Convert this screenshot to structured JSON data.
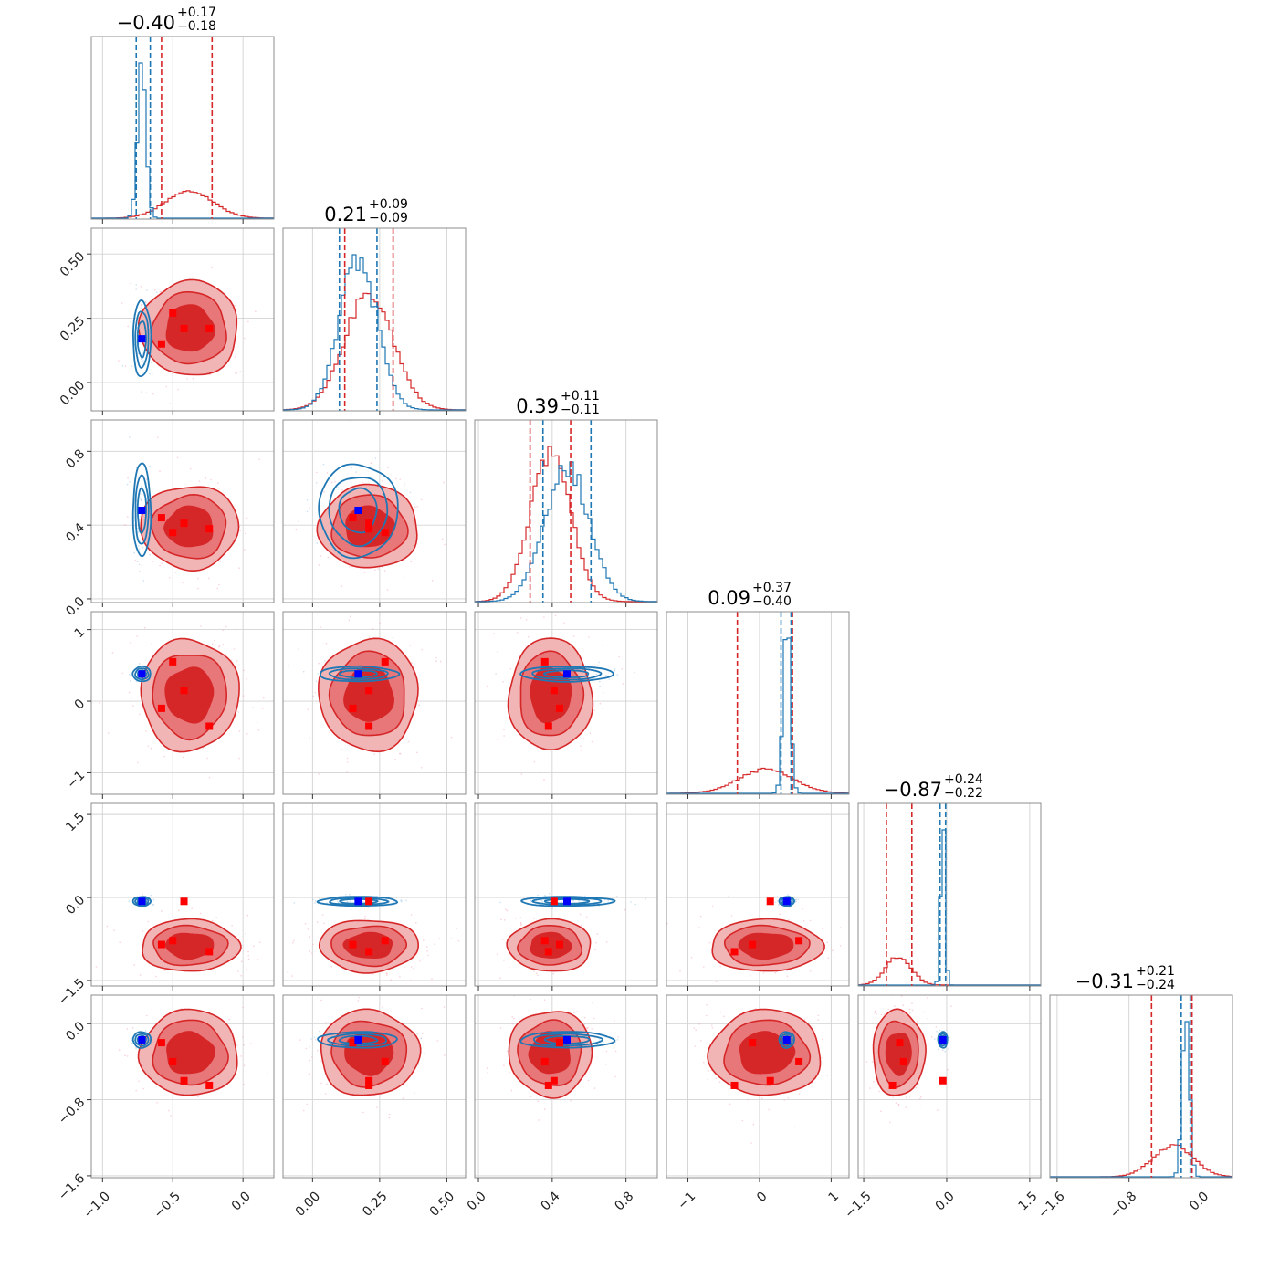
{
  "chart_data": {
    "type": "corner",
    "colors": {
      "red": "#d62728",
      "blue": "#1f77b4",
      "red_marker": "#ff0000",
      "blue_marker": "#0000ff"
    },
    "grid": true,
    "parameters": [
      {
        "median": -0.4,
        "plus": 0.17,
        "minus": 0.18,
        "title_main": "−0.40",
        "title_plus": "+0.17",
        "title_minus": "−0.18",
        "range": [
          -1.08,
          0.22
        ],
        "ticks": [
          -1.0,
          -0.5,
          0.0
        ],
        "tick_labels": [
          "−1.0",
          "−0.5",
          "0.0"
        ],
        "row_ylim": null,
        "red": {
          "mean": -0.38,
          "sd": 0.17
        },
        "blue": {
          "mean": -0.72,
          "sd": 0.03
        },
        "red_quantiles": [
          -0.58,
          -0.22
        ],
        "blue_quantiles": [
          -0.76,
          -0.66
        ],
        "red_markers": [
          -0.58,
          -0.5,
          -0.42,
          -0.24
        ],
        "blue_marker": -0.72
      },
      {
        "median": 0.21,
        "plus": 0.09,
        "minus": 0.09,
        "title_main": "0.21",
        "title_plus": "+0.09",
        "title_minus": "−0.09",
        "range": [
          -0.11,
          0.57
        ],
        "ticks": [
          0.0,
          0.25,
          0.5
        ],
        "tick_labels": [
          "0.00",
          "0.25",
          "0.50"
        ],
        "row_ylim": [
          -0.11,
          0.6
        ],
        "red": {
          "mean": 0.21,
          "sd": 0.09
        },
        "blue": {
          "mean": 0.17,
          "sd": 0.07
        },
        "red_quantiles": [
          0.12,
          0.3
        ],
        "blue_quantiles": [
          0.1,
          0.24
        ],
        "red_markers": [
          0.15,
          0.27,
          0.21,
          0.21
        ],
        "blue_marker": 0.17
      },
      {
        "median": 0.39,
        "plus": 0.11,
        "minus": 0.11,
        "title_main": "0.39",
        "title_plus": "+0.11",
        "title_minus": "−0.11",
        "range": [
          -0.02,
          0.97
        ],
        "ticks": [
          0.0,
          0.4,
          0.8
        ],
        "tick_labels": [
          "0.0",
          "0.4",
          "0.8"
        ],
        "row_ylim": [
          -0.02,
          0.97
        ],
        "red": {
          "mean": 0.39,
          "sd": 0.11
        },
        "blue": {
          "mean": 0.48,
          "sd": 0.12
        },
        "red_quantiles": [
          0.28,
          0.5
        ],
        "blue_quantiles": [
          0.35,
          0.61
        ],
        "red_markers": [
          0.44,
          0.36,
          0.41,
          0.38
        ],
        "blue_marker": 0.48
      },
      {
        "median": 0.09,
        "plus": 0.37,
        "minus": 0.4,
        "title_main": "0.09",
        "title_plus": "+0.37",
        "title_minus": "−0.40",
        "range": [
          -1.3,
          1.25
        ],
        "ticks": [
          -1,
          0,
          1
        ],
        "tick_labels": [
          "−1",
          "0",
          "1"
        ],
        "row_ylim": [
          -1.3,
          1.25
        ],
        "red": {
          "mean": 0.09,
          "sd": 0.38
        },
        "blue": {
          "mean": 0.38,
          "sd": 0.05
        },
        "red_quantiles": [
          -0.31,
          0.46
        ],
        "blue_quantiles": [
          0.3,
          0.44
        ],
        "red_markers": [
          -0.1,
          0.55,
          0.15,
          -0.35
        ],
        "blue_marker": 0.38
      },
      {
        "median": -0.87,
        "plus": 0.24,
        "minus": 0.22,
        "title_main": "−0.87",
        "title_plus": "+0.24",
        "title_minus": "−0.22",
        "range": [
          -1.6,
          1.7
        ],
        "ticks": [
          -1.5,
          0.0,
          1.5
        ],
        "tick_labels": [
          "−1.5",
          "0.0",
          "1.5"
        ],
        "row_ylim": [
          -1.6,
          1.7
        ],
        "red": {
          "mean": -0.87,
          "sd": 0.23
        },
        "blue": {
          "mean": -0.07,
          "sd": 0.04
        },
        "red_quantiles": [
          -1.09,
          -0.63
        ],
        "blue_quantiles": [
          -0.12,
          -0.02
        ],
        "red_markers": [
          -0.85,
          -0.78,
          -0.07,
          -0.98
        ],
        "blue_marker": -0.07
      },
      {
        "median": -0.31,
        "plus": 0.21,
        "minus": 0.24,
        "title_main": "−0.31",
        "title_plus": "+0.21",
        "title_minus": "−0.24",
        "range": [
          -1.68,
          0.35
        ],
        "ticks": [
          -1.6,
          -0.8,
          0.0
        ],
        "tick_labels": [
          "−1.6",
          "−0.8",
          "0.0"
        ],
        "row_ylim": [
          -1.62,
          0.3
        ],
        "red": {
          "mean": -0.31,
          "sd": 0.22
        },
        "blue": {
          "mean": -0.17,
          "sd": 0.04
        },
        "red_quantiles": [
          -0.55,
          -0.1
        ],
        "blue_quantiles": [
          -0.22,
          -0.12
        ],
        "red_markers": [
          -0.2,
          -0.4,
          -0.6,
          -0.65
        ],
        "blue_marker": -0.17
      }
    ]
  }
}
